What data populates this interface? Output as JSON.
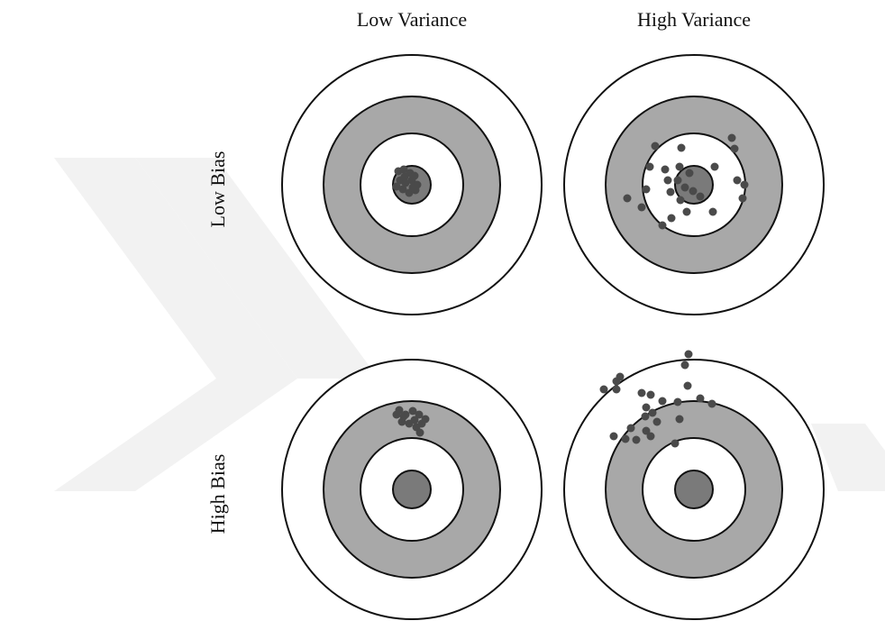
{
  "columns": [
    "Low Variance",
    "High Variance"
  ],
  "rows": [
    "Low Bias",
    "High Bias"
  ]
}
